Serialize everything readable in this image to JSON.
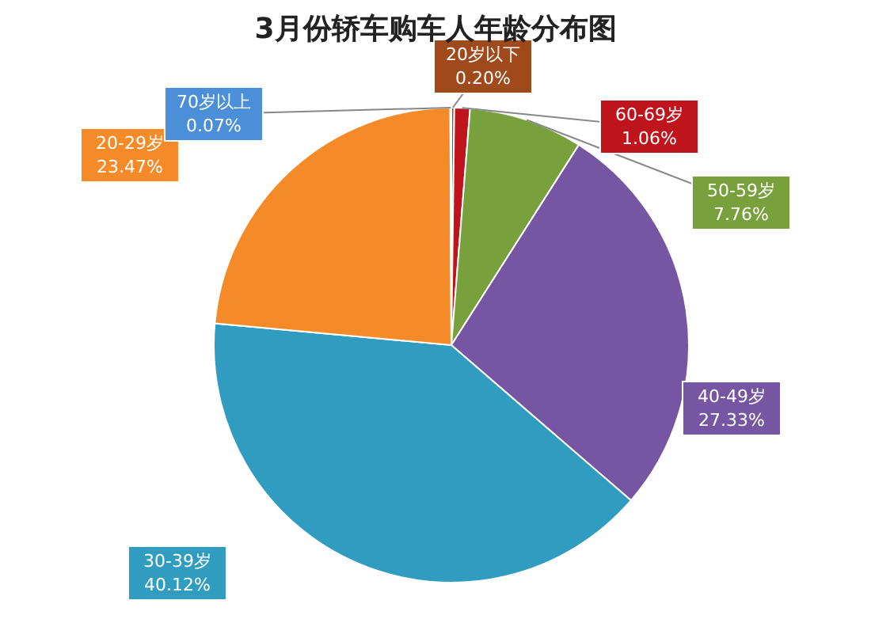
{
  "chart_data": {
    "type": "pie",
    "title": "3月份轿车购车人年龄分布图",
    "categories": [
      "20岁以下",
      "60-69岁",
      "50-59岁",
      "40-49岁",
      "30-39岁",
      "20-29岁",
      "70岁以上"
    ],
    "values": [
      0.2,
      1.06,
      7.76,
      27.33,
      40.12,
      23.47,
      0.07
    ],
    "value_labels": [
      "0.20%",
      "1.06%",
      "7.76%",
      "27.33%",
      "40.12%",
      "23.47%",
      "0.07%"
    ],
    "colors": [
      "#a04a1c",
      "#c0141c",
      "#78a03c",
      "#7655a2",
      "#2f9cc0",
      "#f58a28",
      "#4a8fd8"
    ],
    "legend": false
  }
}
